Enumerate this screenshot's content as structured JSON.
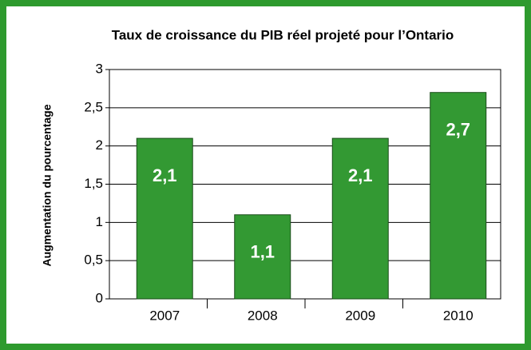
{
  "chart_data": {
    "type": "bar",
    "title": "Taux de croissance du PIB réel projeté pour l’Ontario",
    "y_label": "Augmentation du pourcentage",
    "categories": [
      "2007",
      "2008",
      "2009",
      "2010"
    ],
    "values": [
      2.1,
      1.1,
      2.1,
      2.7
    ],
    "value_labels": [
      "2,1",
      "1,1",
      "2,1",
      "2,7"
    ],
    "color": "#339933",
    "ylim": [
      0,
      3
    ],
    "yticks": [
      0,
      {
        "value": 0.5,
        "label": "0,5"
      },
      1,
      {
        "value": 1.5,
        "label": "1,5"
      },
      2,
      {
        "value": 2.5,
        "label": "2,5"
      },
      3
    ],
    "grid": true
  }
}
